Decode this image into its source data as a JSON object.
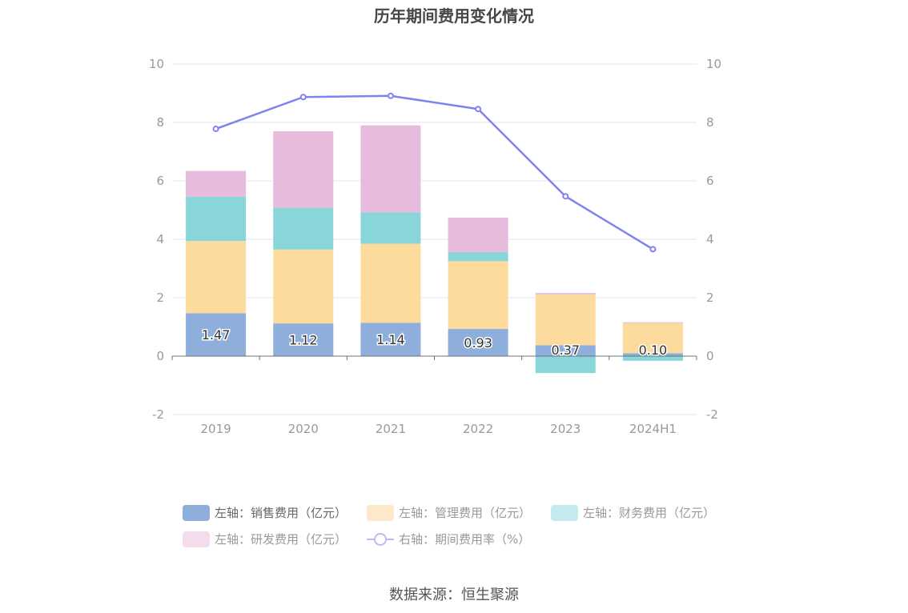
{
  "title": "历年期间费用变化情况",
  "source": "数据来源：恒生聚源",
  "chart_data": {
    "type": "bar",
    "stacked": true,
    "categories": [
      "2019",
      "2020",
      "2021",
      "2022",
      "2023",
      "2024H1"
    ],
    "left_axis": {
      "min": -2,
      "max": 10,
      "ticks": [
        -2,
        0,
        2,
        4,
        6,
        8,
        10
      ]
    },
    "right_axis": {
      "min": -2,
      "max": 10,
      "ticks": [
        -2,
        0,
        2,
        4,
        6,
        8,
        10
      ]
    },
    "grid": true,
    "legend_position": "bottom",
    "series": [
      {
        "name": "左轴：销售费用（亿元）",
        "axis": "left",
        "type": "bar",
        "color": "#8eaedb",
        "values": [
          1.47,
          1.12,
          1.14,
          0.93,
          0.37,
          0.1
        ],
        "labels": [
          "1.47",
          "1.12",
          "1.14",
          "0.93",
          "0.37",
          "0.10"
        ]
      },
      {
        "name": "左轴：管理费用（亿元）",
        "axis": "left",
        "type": "bar",
        "color": "#fddb9c",
        "values": [
          2.47,
          2.53,
          2.71,
          2.32,
          1.74,
          1.03
        ]
      },
      {
        "name": "左轴：财务费用（亿元）",
        "axis": "left",
        "type": "bar",
        "color": "#88d6da",
        "values": [
          1.52,
          1.43,
          1.07,
          0.31,
          -0.58,
          -0.16
        ]
      },
      {
        "name": "左轴：研发费用（亿元）",
        "axis": "left",
        "type": "bar",
        "color": "#e6bbdc",
        "values": [
          0.88,
          2.62,
          2.98,
          1.18,
          0.05,
          0.03
        ]
      },
      {
        "name": "右轴：期间费用率（%）",
        "axis": "right",
        "type": "line",
        "color": "#7e83ee",
        "values": [
          7.78,
          8.87,
          8.91,
          8.46,
          5.47,
          3.66
        ]
      }
    ]
  }
}
